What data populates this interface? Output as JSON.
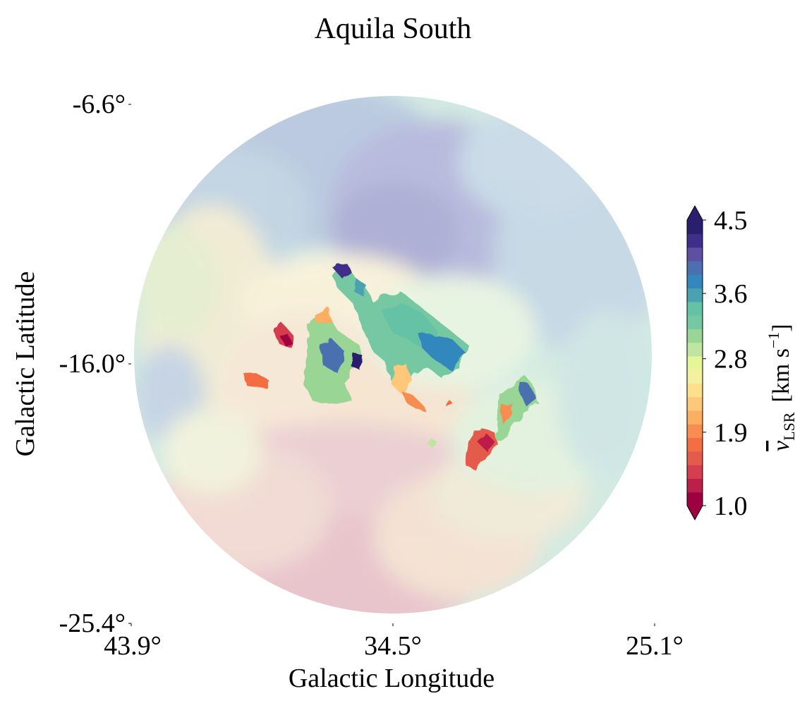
{
  "chart_data": {
    "type": "heatmap",
    "title": "Aquila South",
    "xlabel": "Galactic Longitude",
    "ylabel": "Galactic Latitude",
    "xlim": [
      43.9,
      25.1
    ],
    "ylim": [
      -25.4,
      -6.6
    ],
    "xticks": [
      {
        "value": 43.9,
        "label": "43.9°"
      },
      {
        "value": 34.5,
        "label": "34.5°"
      },
      {
        "value": 25.1,
        "label": "25.1°"
      }
    ],
    "yticks": [
      {
        "value": -6.6,
        "label": "-6.6°"
      },
      {
        "value": -16.0,
        "label": "-16.0°"
      },
      {
        "value": -25.4,
        "label": "-25.4°"
      }
    ],
    "colorbar": {
      "label_main": "v",
      "label_sub": "LSR",
      "label_units": "[km s",
      "label_exp": "−1",
      "label_close": "]",
      "range": [
        1.0,
        4.5
      ],
      "extend": "both",
      "colormap": "Spectral",
      "ticks": [
        {
          "value": 1.0,
          "label": "1.0"
        },
        {
          "value": 1.9,
          "label": "1.9"
        },
        {
          "value": 2.8,
          "label": "2.8"
        },
        {
          "value": 3.6,
          "label": "3.6"
        },
        {
          "value": 4.5,
          "label": "4.5"
        }
      ],
      "levels": [
        "#9e0142",
        "#bd1f4b",
        "#d53e4f",
        "#e45a4b",
        "#f46d43",
        "#f88d51",
        "#fdae61",
        "#fec77a",
        "#fee08b",
        "#f4f0a0",
        "#e6f598",
        "#bfe5a0",
        "#99d594",
        "#74c8a2",
        "#66c2a5",
        "#4ba0b1",
        "#3288bd",
        "#4c6fb0",
        "#5e4fa2",
        "#3f2f8a",
        "#2a1e6e"
      ]
    },
    "regions": [
      {
        "name": "background",
        "opacity": "faint",
        "velocity_range": [
          1.5,
          4.0
        ]
      },
      {
        "name": "clump-upper-center",
        "velocity_range": [
          1.0,
          4.5
        ]
      },
      {
        "name": "clump-center-left",
        "velocity_range": [
          1.0,
          4.5
        ]
      },
      {
        "name": "clump-right",
        "velocity_range": [
          1.0,
          4.5
        ]
      }
    ]
  }
}
